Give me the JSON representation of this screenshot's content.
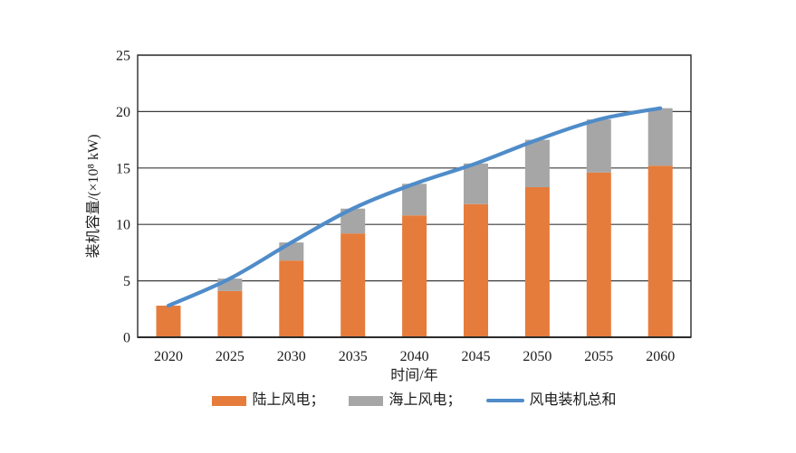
{
  "chart_data": {
    "type": "bar",
    "subtype": "stacked-bar-with-line",
    "title": "",
    "xlabel": "时间/年",
    "ylabel": "装机容量/(×10⁸ kW)",
    "categories": [
      "2020",
      "2025",
      "2030",
      "2035",
      "2040",
      "2045",
      "2050",
      "2055",
      "2060"
    ],
    "series": [
      {
        "name": "陆上风电",
        "type": "bar-stack",
        "color": "#E57C3B",
        "values": [
          2.8,
          4.1,
          6.8,
          9.2,
          10.8,
          11.8,
          13.3,
          14.6,
          15.2
        ]
      },
      {
        "name": "海上风电",
        "type": "bar-stack",
        "color": "#A6A6A6",
        "values": [
          0,
          1.1,
          1.6,
          2.2,
          2.8,
          3.6,
          4.2,
          4.7,
          5.1
        ]
      },
      {
        "name": "风电装机总和",
        "type": "line",
        "color": "#4F8CC9",
        "values": [
          2.8,
          5.2,
          8.4,
          11.4,
          13.6,
          15.4,
          17.5,
          19.3,
          20.3
        ]
      }
    ],
    "ylim": [
      0,
      25
    ],
    "yticks": [
      0,
      5,
      10,
      15,
      20,
      25
    ],
    "grid": true,
    "grid_color": "#3a3a3a",
    "axis_color": "#2b2b2b",
    "text_color": "#1c1c1c",
    "legend_position": "bottom"
  },
  "legend": {
    "items": [
      {
        "label": "陆上风电；",
        "swatch": "rect",
        "color": "#E57C3B"
      },
      {
        "label": "海上风电；",
        "swatch": "rect",
        "color": "#A6A6A6"
      },
      {
        "label": "风电装机总和",
        "swatch": "line",
        "color": "#4F8CC9"
      }
    ]
  }
}
